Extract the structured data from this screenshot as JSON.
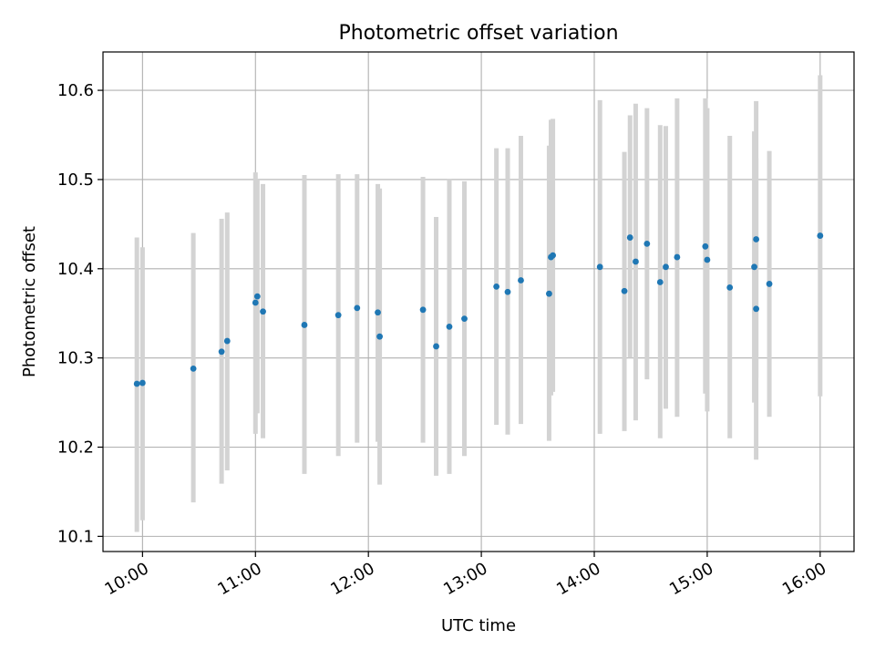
{
  "chart_data": {
    "type": "scatter",
    "title": "Photometric offset variation",
    "xlabel": "UTC time",
    "ylabel": "Photometric offset",
    "x_tick_labels": [
      "10:00",
      "11:00",
      "12:00",
      "13:00",
      "14:00",
      "15:00",
      "16:00"
    ],
    "x_ticks": [
      "10:00",
      "11:00",
      "12:00",
      "13:00",
      "14:00",
      "15:00",
      "16:00"
    ],
    "y_tick_labels": [
      "10.1",
      "10.2",
      "10.3",
      "10.4",
      "10.5",
      "10.6"
    ],
    "y_ticks": [
      10.1,
      10.2,
      10.3,
      10.4,
      10.5,
      10.6
    ],
    "xlim": [
      "09:39",
      "16:18"
    ],
    "ylim": [
      10.083,
      10.643
    ],
    "grid": true,
    "colors": {
      "point": "#1f77b4",
      "errorbar": "#d3d3d3",
      "grid": "#b0b0b0"
    },
    "points": [
      {
        "t": "09:57",
        "y": 10.271,
        "lo": 10.105,
        "hi": 10.435
      },
      {
        "t": "10:00",
        "y": 10.272,
        "lo": 10.118,
        "hi": 10.424
      },
      {
        "t": "10:27",
        "y": 10.288,
        "lo": 10.138,
        "hi": 10.44
      },
      {
        "t": "10:42",
        "y": 10.307,
        "lo": 10.159,
        "hi": 10.456
      },
      {
        "t": "10:45",
        "y": 10.319,
        "lo": 10.174,
        "hi": 10.463
      },
      {
        "t": "11:00",
        "y": 10.362,
        "lo": 10.215,
        "hi": 10.508
      },
      {
        "t": "11:01",
        "y": 10.369,
        "lo": 10.238,
        "hi": 10.5
      },
      {
        "t": "11:04",
        "y": 10.352,
        "lo": 10.21,
        "hi": 10.495
      },
      {
        "t": "11:26",
        "y": 10.337,
        "lo": 10.17,
        "hi": 10.505
      },
      {
        "t": "11:44",
        "y": 10.348,
        "lo": 10.19,
        "hi": 10.506
      },
      {
        "t": "11:54",
        "y": 10.356,
        "lo": 10.205,
        "hi": 10.506
      },
      {
        "t": "12:05",
        "y": 10.351,
        "lo": 10.206,
        "hi": 10.495
      },
      {
        "t": "12:06",
        "y": 10.324,
        "lo": 10.158,
        "hi": 10.49
      },
      {
        "t": "12:29",
        "y": 10.354,
        "lo": 10.205,
        "hi": 10.503
      },
      {
        "t": "12:36",
        "y": 10.313,
        "lo": 10.168,
        "hi": 10.458
      },
      {
        "t": "12:43",
        "y": 10.335,
        "lo": 10.17,
        "hi": 10.5
      },
      {
        "t": "12:51",
        "y": 10.344,
        "lo": 10.19,
        "hi": 10.498
      },
      {
        "t": "13:08",
        "y": 10.38,
        "lo": 10.225,
        "hi": 10.535
      },
      {
        "t": "13:14",
        "y": 10.374,
        "lo": 10.214,
        "hi": 10.535
      },
      {
        "t": "13:21",
        "y": 10.387,
        "lo": 10.226,
        "hi": 10.549
      },
      {
        "t": "13:36",
        "y": 10.372,
        "lo": 10.207,
        "hi": 10.538
      },
      {
        "t": "13:37",
        "y": 10.413,
        "lo": 10.258,
        "hi": 10.567
      },
      {
        "t": "13:38",
        "y": 10.415,
        "lo": 10.262,
        "hi": 10.568
      },
      {
        "t": "14:03",
        "y": 10.402,
        "lo": 10.215,
        "hi": 10.589
      },
      {
        "t": "14:16",
        "y": 10.375,
        "lo": 10.218,
        "hi": 10.531
      },
      {
        "t": "14:19",
        "y": 10.435,
        "lo": 10.3,
        "hi": 10.572
      },
      {
        "t": "14:22",
        "y": 10.408,
        "lo": 10.23,
        "hi": 10.585
      },
      {
        "t": "14:28",
        "y": 10.428,
        "lo": 10.276,
        "hi": 10.58
      },
      {
        "t": "14:35",
        "y": 10.385,
        "lo": 10.21,
        "hi": 10.561
      },
      {
        "t": "14:38",
        "y": 10.402,
        "lo": 10.243,
        "hi": 10.56
      },
      {
        "t": "14:44",
        "y": 10.413,
        "lo": 10.234,
        "hi": 10.591
      },
      {
        "t": "14:59",
        "y": 10.425,
        "lo": 10.26,
        "hi": 10.591
      },
      {
        "t": "15:00",
        "y": 10.41,
        "lo": 10.24,
        "hi": 10.58
      },
      {
        "t": "15:12",
        "y": 10.379,
        "lo": 10.21,
        "hi": 10.549
      },
      {
        "t": "15:25",
        "y": 10.402,
        "lo": 10.25,
        "hi": 10.554
      },
      {
        "t": "15:26",
        "y": 10.355,
        "lo": 10.186,
        "hi": 10.524
      },
      {
        "t": "15:26",
        "y": 10.433,
        "lo": 10.278,
        "hi": 10.588
      },
      {
        "t": "15:33",
        "y": 10.383,
        "lo": 10.234,
        "hi": 10.532
      },
      {
        "t": "16:00",
        "y": 10.437,
        "lo": 10.257,
        "hi": 10.617
      }
    ]
  }
}
